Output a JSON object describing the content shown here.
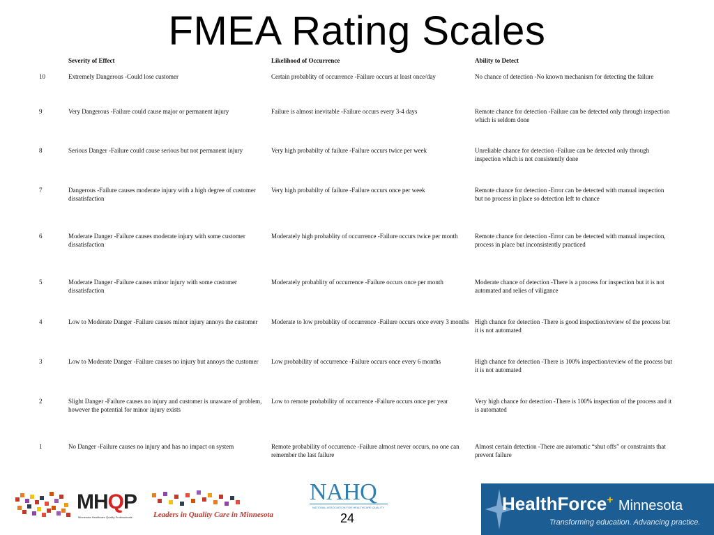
{
  "title": "FMEA Rating Scales",
  "headers": [
    "Severity of Effect",
    "Likelihood of Occurrence",
    "Ability to Detect"
  ],
  "rows": [
    {
      "rank": "10",
      "severity": "Extremely Dangerous -Could lose customer",
      "likelihood": "Certain probablity of occurrence -Failure occurs at least once/day",
      "detect": "No chance of detection -No known mechanism for detecting the failure"
    },
    {
      "rank": "9",
      "severity": "Very Dangerous -Failure could cause major or permanent injury",
      "likelihood": "Failure is almost inevitable -Failure occurs every 3-4 days",
      "detect": "Remote chance for detection -Failure can be detected only through inspection which is seldom done"
    },
    {
      "rank": "8",
      "severity": "Serious Danger -Failure could cause serious but not permanent injury",
      "likelihood": "Very high probabilty of failure -Failure occurs twice per week",
      "detect": "Unreliable chance for detection -Failure can be detected only through inspection which is not consistently done"
    },
    {
      "rank": "7",
      "severity": "Dangerous -Failure causes moderate injury with a high degree of customer dissatisfaction",
      "likelihood": "Very high probabilty of failure -Failure occurs once per week",
      "detect": "Remote chance for detection -Error can be detected with manual inspection but no process in place so detection left to chance"
    },
    {
      "rank": "6",
      "severity": "Moderate Danger -Failure causes moderate injury with some customer dissatisfaction",
      "likelihood": "Moderately high probablity of occurrence -Failure occurs twice per month",
      "detect": "Remote chance for detection -Error can be detected with manual inspection, process in place but inconsistently practiced"
    },
    {
      "rank": "5",
      "severity": "Moderate Danger -Failure causes minor injury with some customer dissatisfaction",
      "likelihood": "Moderately probablity of occurrence -Failure occurs once per month",
      "detect": "Moderate chance of detection -There is a process for inspection but it is not automated and relies of viligance"
    },
    {
      "rank": "4",
      "severity": "Low to Moderate Danger -Failure causes minor injury annoys the customer",
      "likelihood": "Moderate to low probablity of occurrence -Failure occurs once every 3 months",
      "detect": "High chance for detection -There is good inspection/review of the process but it is not automated"
    },
    {
      "rank": "3",
      "severity": "Low to Moderate Danger -Failure causes no injury but annoys the customer",
      "likelihood": "Low probability of occurrence -Failure occurs once every 6 months",
      "detect": "High chance for detection -There is 100% inspection/review of the process but it is not automated"
    },
    {
      "rank": "2",
      "severity": "Slight Danger -Failure causes no injury and customer is unaware of problem, however the potential for minor injury exists",
      "likelihood": "Low to remote probability of occurrence -Failure occurs once per year",
      "detect": "Very high chance for detection -There is 100% inspection of the process and it is automated"
    },
    {
      "rank": "1",
      "severity": "No Danger -Failure causes no injury and has no impact on system",
      "likelihood": "Remote probability of occurrence -Failure almost never occurs, no one can remember the last failure",
      "detect": "Almost certain detection -There are automatic “shut offs” or constraints that prevent failure"
    }
  ],
  "footer": {
    "mhqp": {
      "q_accent": "#d5231f",
      "name": "MHQP",
      "sub": "Minnesota Healthcare Quality Professionals",
      "tagline": "Leaders in Quality Care in Minnesota"
    },
    "nahq": {
      "name": "NAHQ",
      "sub": "NATIONAL ASSOCIATION FOR HEALTHCARE QUALITY",
      "color": "#2f80b0"
    },
    "page_number": "24",
    "healthforce": {
      "health": "Health",
      "force": "Force",
      "minnesota": "Minnesota",
      "tagline": "Transforming education. Advancing practice.",
      "bg": "#1c5e94"
    }
  }
}
